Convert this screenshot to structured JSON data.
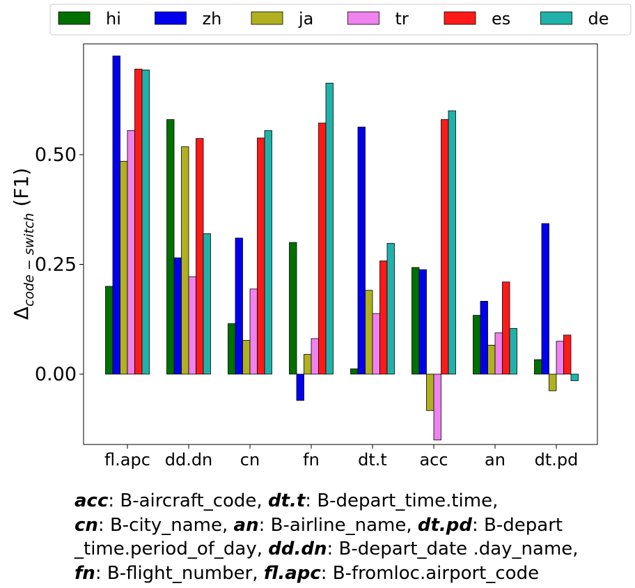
{
  "chart_data": {
    "type": "bar",
    "categories": [
      "fl.apc",
      "dd.dn",
      "cn",
      "fn",
      "dt.t",
      "acc",
      "an",
      "dt.pd"
    ],
    "series": [
      {
        "name": "hi",
        "color": "#007000",
        "values": [
          0.2,
          0.58,
          0.115,
          0.3,
          0.012,
          0.243,
          0.134,
          0.033
        ]
      },
      {
        "name": "zh",
        "color": "#0000ee",
        "values": [
          0.725,
          0.265,
          0.31,
          -0.06,
          0.563,
          0.238,
          0.166,
          0.343
        ]
      },
      {
        "name": "ja",
        "color": "#b0b020",
        "values": [
          0.485,
          0.518,
          0.077,
          0.045,
          0.191,
          -0.083,
          0.066,
          -0.038
        ]
      },
      {
        "name": "tr",
        "color": "#ee82ee",
        "values": [
          0.555,
          0.222,
          0.194,
          0.081,
          0.138,
          -0.15,
          0.094,
          0.075
        ]
      },
      {
        "name": "es",
        "color": "#ff1a1a",
        "values": [
          0.695,
          0.537,
          0.538,
          0.572,
          0.258,
          0.58,
          0.21,
          0.089
        ]
      },
      {
        "name": "de",
        "color": "#20b2aa",
        "values": [
          0.693,
          0.32,
          0.555,
          0.663,
          0.298,
          0.6,
          0.104,
          -0.015
        ]
      }
    ],
    "ylabel_main": "Δ",
    "ylabel_sub": "code − switch",
    "ylabel_suffix": " (F1)",
    "xlabel": "",
    "ylim": [
      -0.155,
      0.75
    ],
    "yticks": [
      0.0,
      0.25,
      0.5
    ],
    "ytick_labels": [
      "0.00",
      "0.25",
      "0.50"
    ],
    "legend_position": "top"
  },
  "caption": [
    [
      {
        "abbr": "acc",
        "text": ": B-aircraft_code, "
      },
      {
        "abbr": "dt.t",
        "text": ": B-depart_time.time,"
      }
    ],
    [
      {
        "abbr": "cn",
        "text": ": B-city_name, "
      },
      {
        "abbr": "an",
        "text": ": B-airline_name, "
      },
      {
        "abbr": "dt.pd",
        "text": ": B-depart"
      }
    ],
    [
      {
        "abbr": "",
        "text": "_time.period_of_day, "
      },
      {
        "abbr": "dd.dn",
        "text": ": B-depart_date .day_name,"
      }
    ],
    [
      {
        "abbr": "fn",
        "text": ": B-flight_number,  "
      },
      {
        "abbr": "fl.apc",
        "text": ": B-fromloc.airport_code"
      }
    ]
  ]
}
